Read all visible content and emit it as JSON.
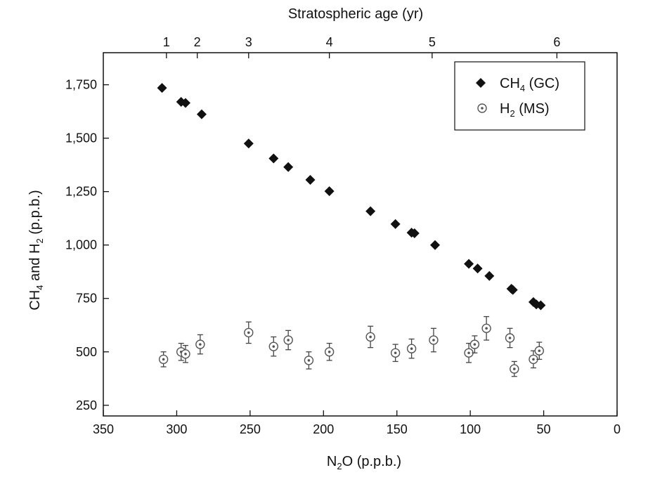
{
  "chart_data": {
    "type": "scatter",
    "title": "",
    "top_axis": {
      "label": "Stratospheric age (yr)",
      "ticks": [
        {
          "label": "1",
          "n2o": 307
        },
        {
          "label": "2",
          "n2o": 286
        },
        {
          "label": "3",
          "n2o": 251
        },
        {
          "label": "4",
          "n2o": 196
        },
        {
          "label": "5",
          "n2o": 126
        },
        {
          "label": "6",
          "n2o": 41
        }
      ]
    },
    "xlabel": {
      "main": "N",
      "sub": "2",
      "rest": "O (p.p.b.)"
    },
    "ylabel": {
      "p1": "CH",
      "s1": "4",
      "p2": " and H",
      "s2": "2",
      "p3": " (p.p.b.)"
    },
    "xlim": [
      350,
      0
    ],
    "ylim": [
      200,
      1900
    ],
    "x_ticks": [
      350,
      300,
      250,
      200,
      150,
      100,
      50,
      0
    ],
    "y_ticks": [
      250,
      500,
      750,
      1000,
      1250,
      1500,
      1750
    ],
    "y_tick_labels": [
      "250",
      "500",
      "750",
      "1,000",
      "1,250",
      "1,500",
      "1,750"
    ],
    "legend": {
      "position": "top-right",
      "entries": [
        {
          "main": "CH",
          "sub": "4",
          "rest": " (GC)",
          "marker": "diamond"
        },
        {
          "main": "H",
          "sub": "2",
          "rest": " (MS)",
          "marker": "open-circle"
        }
      ]
    },
    "series": [
      {
        "name": "CH4 (GC)",
        "marker": "diamond",
        "color": "#111111",
        "x": [
          310,
          297,
          294,
          283,
          251,
          234,
          224,
          209,
          196,
          168,
          151,
          140,
          138,
          124,
          101,
          95,
          87,
          72,
          71,
          57,
          55,
          52
        ],
        "y": [
          1735,
          1670,
          1665,
          1612,
          1475,
          1405,
          1365,
          1305,
          1252,
          1158,
          1098,
          1058,
          1055,
          1000,
          912,
          890,
          855,
          795,
          790,
          733,
          722,
          718
        ]
      },
      {
        "name": "H2 (MS)",
        "marker": "open-circle",
        "color": "#666666",
        "x": [
          309,
          297,
          294,
          284,
          251,
          234,
          224,
          210,
          196,
          168,
          151,
          140,
          125,
          101,
          97,
          89,
          73,
          70,
          57,
          53
        ],
        "y": [
          465,
          500,
          490,
          535,
          590,
          525,
          555,
          460,
          500,
          570,
          495,
          515,
          555,
          495,
          535,
          610,
          565,
          420,
          465,
          505
        ],
        "err": [
          35,
          40,
          40,
          45,
          50,
          45,
          45,
          40,
          40,
          50,
          40,
          45,
          55,
          45,
          40,
          55,
          45,
          35,
          40,
          40
        ]
      }
    ]
  }
}
